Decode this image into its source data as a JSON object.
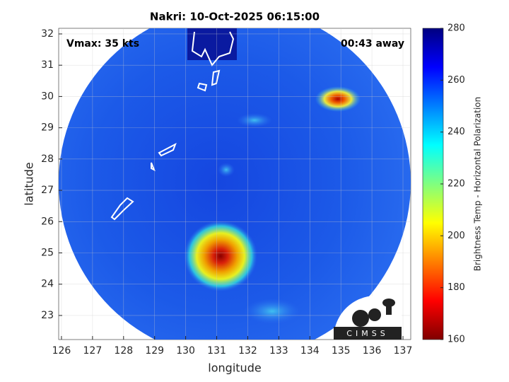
{
  "map": {
    "title": "Nakri: 10-Oct-2025 06:15:00",
    "vmax_label": "Vmax: 35 kts",
    "time_label": "00:43 away",
    "xlabel": "longitude",
    "ylabel": "latitude",
    "xlim": [
      125.91,
      137.25
    ],
    "ylim": [
      22.23,
      32.18
    ],
    "xticks": [
      126,
      127,
      128,
      129,
      130,
      131,
      132,
      133,
      134,
      135,
      136,
      137
    ],
    "yticks": [
      23,
      24,
      25,
      26,
      27,
      28,
      29,
      30,
      31,
      32
    ],
    "colorbar": {
      "label": "Brightness Temp - Horizontal Polarization",
      "lim": [
        160,
        280
      ],
      "ticks": [
        160,
        180,
        200,
        220,
        240,
        260,
        280
      ]
    },
    "logo": "CIMSS"
  }
}
